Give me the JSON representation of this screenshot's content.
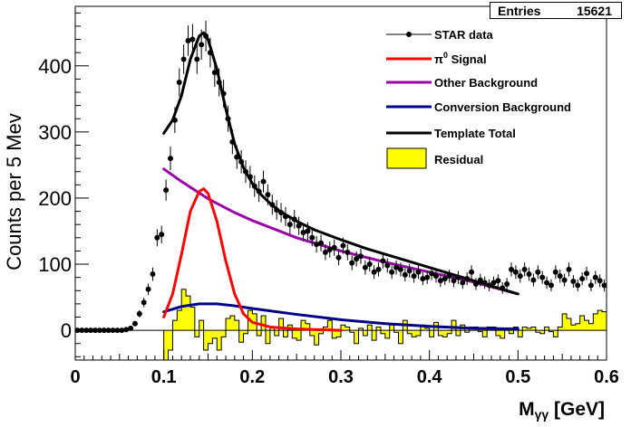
{
  "stats": {
    "entries_label": "Entries",
    "entries_value": "15621"
  },
  "chart_data": {
    "type": "line",
    "xlabel_main": "M",
    "xlabel_sub": "γγ",
    "xlabel_unit": " [GeV]",
    "ylabel": "Counts per 5 Mev",
    "xlim": [
      0,
      0.6
    ],
    "ylim": [
      -45,
      490
    ],
    "x_ticks": [
      0,
      0.1,
      0.2,
      0.3,
      0.4,
      0.5,
      0.6
    ],
    "x_tick_labels": [
      "0",
      "0.1",
      "0.2",
      "0.3",
      "0.4",
      "0.5",
      "0.6"
    ],
    "y_ticks": [
      0,
      100,
      200,
      300,
      400
    ],
    "y_tick_labels": [
      "0",
      "100",
      "200",
      "300",
      "400"
    ],
    "grid": false,
    "legend_position": "top-right",
    "legend": [
      {
        "key": "data",
        "label": "STAR data",
        "color": "#000000",
        "style": "marker-line"
      },
      {
        "key": "signal",
        "label_main": "π",
        "label_sup": "0",
        "label_rest": " Signal",
        "color": "#ff0000",
        "style": "line"
      },
      {
        "key": "other",
        "label": "Other Background",
        "color": "#9900aa",
        "style": "line"
      },
      {
        "key": "conv",
        "label": "Conversion Background",
        "color": "#00008b",
        "style": "line"
      },
      {
        "key": "total",
        "label": "Template Total",
        "color": "#000000",
        "style": "line"
      },
      {
        "key": "resid",
        "label": "Residual",
        "color": "#ffff00",
        "style": "box"
      }
    ],
    "series": [
      {
        "name": "STAR data",
        "key": "data",
        "color": "#000000",
        "x": [
          0.0025,
          0.0075,
          0.0125,
          0.0175,
          0.0225,
          0.0275,
          0.0325,
          0.0375,
          0.0425,
          0.0475,
          0.0525,
          0.0575,
          0.0625,
          0.0675,
          0.0725,
          0.0775,
          0.0825,
          0.0875,
          0.0925,
          0.0975,
          0.1025,
          0.1075,
          0.1125,
          0.1175,
          0.1225,
          0.1275,
          0.1325,
          0.1375,
          0.1425,
          0.1475,
          0.1525,
          0.1575,
          0.1625,
          0.1675,
          0.1725,
          0.1775,
          0.1825,
          0.1875,
          0.1925,
          0.1975,
          0.2025,
          0.2075,
          0.2125,
          0.2175,
          0.2225,
          0.2275,
          0.2325,
          0.2375,
          0.2425,
          0.2475,
          0.2525,
          0.2575,
          0.2625,
          0.2675,
          0.2725,
          0.2775,
          0.2825,
          0.2875,
          0.2925,
          0.2975,
          0.3025,
          0.3075,
          0.3125,
          0.3175,
          0.3225,
          0.3275,
          0.3325,
          0.3375,
          0.3425,
          0.3475,
          0.3525,
          0.3575,
          0.3625,
          0.3675,
          0.3725,
          0.3775,
          0.3825,
          0.3875,
          0.3925,
          0.3975,
          0.4025,
          0.4075,
          0.4125,
          0.4175,
          0.4225,
          0.4275,
          0.4325,
          0.4375,
          0.4425,
          0.4475,
          0.4525,
          0.4575,
          0.4625,
          0.4675,
          0.4725,
          0.4775,
          0.4825,
          0.4875,
          0.4925,
          0.4975,
          0.5025,
          0.5075,
          0.5125,
          0.5175,
          0.5225,
          0.5275,
          0.5325,
          0.5375,
          0.5425,
          0.5475,
          0.5525,
          0.5575,
          0.5625,
          0.5675,
          0.5725,
          0.5775,
          0.5825,
          0.5875,
          0.5925,
          0.5975
        ],
        "y": [
          0,
          0,
          0,
          0,
          0,
          0,
          0,
          0,
          0,
          0,
          0,
          1,
          3,
          10,
          25,
          42,
          62,
          85,
          140,
          145,
          212,
          260,
          318,
          375,
          410,
          438,
          440,
          410,
          432,
          445,
          420,
          390,
          375,
          358,
          320,
          285,
          262,
          255,
          240,
          232,
          218,
          210,
          225,
          205,
          190,
          182,
          178,
          172,
          160,
          168,
          158,
          148,
          150,
          140,
          130,
          132,
          118,
          122,
          125,
          110,
          128,
          118,
          102,
          108,
          112,
          95,
          100,
          88,
          92,
          105,
          98,
          88,
          95,
          92,
          84,
          90,
          82,
          88,
          78,
          80,
          86,
          82,
          75,
          78,
          82,
          75,
          80,
          72,
          78,
          88,
          70,
          76,
          72,
          68,
          72,
          75,
          64,
          70,
          92,
          88,
          82,
          92,
          85,
          76,
          88,
          80,
          72,
          68,
          88,
          82,
          76,
          92,
          74,
          68,
          78,
          86,
          68,
          80,
          75,
          68
        ]
      },
      {
        "name": "Template Total",
        "key": "total",
        "color": "#000000",
        "x": [
          0.1,
          0.11,
          0.12,
          0.13,
          0.14,
          0.145,
          0.15,
          0.16,
          0.17,
          0.18,
          0.19,
          0.2,
          0.21,
          0.22,
          0.23,
          0.24,
          0.25,
          0.27,
          0.3,
          0.33,
          0.36,
          0.4,
          0.45,
          0.5
        ],
        "y": [
          298,
          318,
          355,
          410,
          445,
          450,
          440,
          395,
          335,
          282,
          246,
          222,
          205,
          192,
          181,
          173,
          165,
          152,
          137,
          123,
          111,
          95,
          75,
          55
        ]
      },
      {
        "name": "π0 Signal",
        "key": "signal",
        "color": "#ff0000",
        "x": [
          0.1,
          0.11,
          0.12,
          0.13,
          0.14,
          0.145,
          0.15,
          0.16,
          0.17,
          0.18,
          0.19,
          0.2,
          0.22,
          0.25,
          0.3
        ],
        "y": [
          20,
          55,
          115,
          180,
          210,
          214,
          207,
          165,
          105,
          55,
          25,
          12,
          5,
          2,
          0
        ]
      },
      {
        "name": "Other Background",
        "key": "other",
        "color": "#9900aa",
        "x": [
          0.1,
          0.12,
          0.15,
          0.18,
          0.2,
          0.25,
          0.3,
          0.35,
          0.4,
          0.45,
          0.5
        ],
        "y": [
          244,
          225,
          199,
          178,
          166,
          140,
          120,
          103,
          88,
          73,
          55
        ]
      },
      {
        "name": "Conversion Background",
        "key": "conv",
        "color": "#00008b",
        "x": [
          0.1,
          0.12,
          0.14,
          0.16,
          0.18,
          0.2,
          0.25,
          0.3,
          0.35,
          0.4,
          0.45,
          0.5
        ],
        "y": [
          28,
          36,
          40,
          40,
          37,
          33,
          24,
          16,
          10,
          6,
          3,
          2
        ]
      },
      {
        "name": "Residual",
        "key": "resid",
        "color": "#ffff00",
        "x_start": 0.1,
        "bin_width": 0.005,
        "values": [
          -45,
          -30,
          15,
          30,
          62,
          52,
          35,
          -10,
          15,
          -30,
          -20,
          -12,
          -30,
          -10,
          18,
          22,
          15,
          -18,
          -5,
          30,
          25,
          -8,
          22,
          -20,
          5,
          -8,
          18,
          -10,
          8,
          -12,
          -15,
          15,
          10,
          -8,
          -22,
          -5,
          5,
          15,
          -12,
          -10,
          8,
          5,
          -3,
          -20,
          3,
          -8,
          8,
          -15,
          5,
          -5,
          -12,
          8,
          -3,
          -20,
          15,
          -5,
          -10,
          -8,
          8,
          3,
          -10,
          12,
          -8,
          -10,
          -5,
          15,
          -8,
          8,
          -3,
          5,
          5,
          -2,
          -10,
          5,
          5,
          -8,
          -12,
          3,
          -5,
          5,
          -10,
          5,
          3,
          5,
          -3,
          -5,
          5,
          -2,
          -10,
          5,
          25,
          18,
          8,
          10,
          22,
          15,
          10,
          25,
          30,
          28
        ]
      }
    ]
  }
}
